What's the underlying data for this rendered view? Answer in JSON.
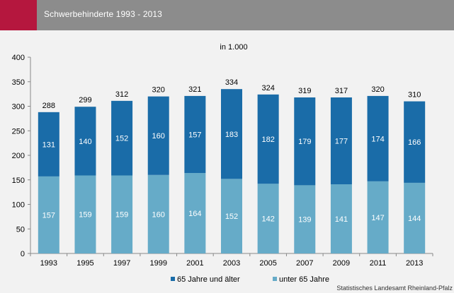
{
  "header": {
    "title": "Schwerbehinderte 1993 - 2013",
    "accent_color": "#b5173e",
    "bar_color": "#8c8c8c"
  },
  "footer": {
    "credit": "Statistisches Landesamt Rheinland-Pfalz"
  },
  "chart_data": {
    "type": "bar",
    "stacked": true,
    "subtitle": "in 1.000",
    "categories": [
      "1993",
      "1995",
      "1997",
      "1999",
      "2001",
      "2003",
      "2005",
      "2007",
      "2009",
      "2011",
      "2013"
    ],
    "series": [
      {
        "name": "unter 65 Jahre",
        "color": "#66abc8",
        "values": [
          157,
          159,
          159,
          160,
          164,
          152,
          142,
          139,
          141,
          147,
          144
        ]
      },
      {
        "name": "65 Jahre und älter",
        "color": "#1a6ca8",
        "values": [
          131,
          140,
          152,
          160,
          157,
          183,
          182,
          179,
          177,
          174,
          166
        ]
      }
    ],
    "totals": [
      288,
      299,
      312,
      320,
      321,
      334,
      324,
      319,
      317,
      320,
      310
    ],
    "ylim": [
      0,
      400
    ],
    "yticks": [
      0,
      50,
      100,
      150,
      200,
      250,
      300,
      350,
      400
    ],
    "legend_position": "bottom-right",
    "grid": false
  }
}
